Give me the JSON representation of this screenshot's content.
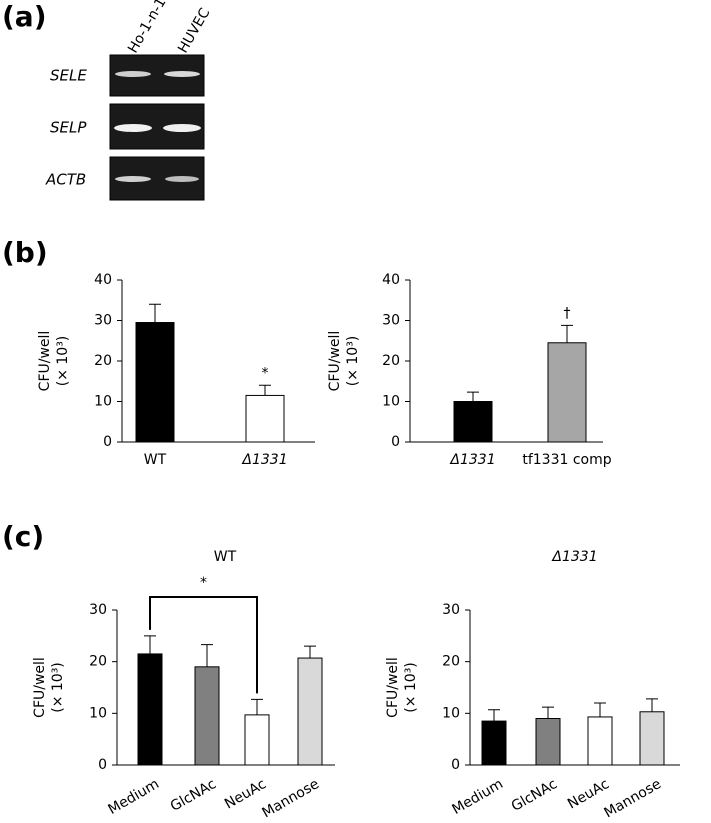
{
  "panel_labels": [
    "(a)",
    "(b)",
    "(c)"
  ],
  "gel": {
    "lanes": [
      "Ho-1-n-1",
      "HUVEC"
    ],
    "genes": [
      "SELE",
      "SELP",
      "ACTB"
    ]
  },
  "chart_data": [
    {
      "type": "bar",
      "ylabel": "CFU/well",
      "ylabel_unit": "(× 10³)",
      "categories": [
        "WT",
        "Δ1331"
      ],
      "values": [
        29.5,
        11.5
      ],
      "errors": [
        4.5,
        2.5
      ],
      "colors": [
        "#000000",
        "#ffffff"
      ],
      "ylim": [
        0,
        40
      ],
      "yticks": [
        0,
        10,
        20,
        30,
        40
      ],
      "annotations": [
        {
          "text": "*",
          "x": "Δ1331"
        }
      ]
    },
    {
      "type": "bar",
      "ylabel": "CFU/well",
      "ylabel_unit": "(× 10³)",
      "categories": [
        "Δ1331",
        "tf1331 comp"
      ],
      "values": [
        10,
        24.5
      ],
      "errors": [
        2.3,
        4.3
      ],
      "colors": [
        "#000000",
        "#a6a6a6"
      ],
      "ylim": [
        0,
        40
      ],
      "yticks": [
        0,
        10,
        20,
        30,
        40
      ],
      "annotations": [
        {
          "text": "†",
          "x": "tf1331 comp"
        }
      ]
    },
    {
      "type": "bar",
      "title": "WT",
      "ylabel": "CFU/well",
      "ylabel_unit": "(× 10³)",
      "categories": [
        "Medium",
        "GlcNAc",
        "NeuAc",
        "Mannose"
      ],
      "values": [
        21.5,
        19,
        9.7,
        20.7
      ],
      "errors": [
        3.5,
        4.3,
        3,
        2.3
      ],
      "colors": [
        "#000000",
        "#808080",
        "#ffffff",
        "#d9d9d9"
      ],
      "ylim": [
        0,
        30
      ],
      "yticks": [
        0,
        10,
        20,
        30
      ],
      "brackets": [
        {
          "text": "*",
          "from": "Medium",
          "to": "NeuAc"
        }
      ]
    },
    {
      "type": "bar",
      "title": "Δ1331",
      "ylabel": "CFU/well",
      "ylabel_unit": "(× 10³)",
      "categories": [
        "Medium",
        "GlcNAc",
        "NeuAc",
        "Mannose"
      ],
      "values": [
        8.5,
        9,
        9.3,
        10.3
      ],
      "errors": [
        2.2,
        2.2,
        2.7,
        2.5
      ],
      "colors": [
        "#000000",
        "#808080",
        "#ffffff",
        "#d9d9d9"
      ],
      "ylim": [
        0,
        30
      ],
      "yticks": [
        0,
        10,
        20,
        30
      ]
    }
  ]
}
